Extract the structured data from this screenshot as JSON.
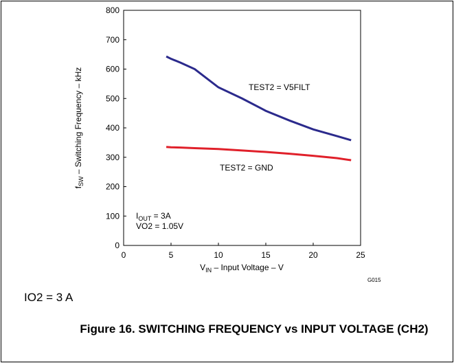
{
  "chart_data": {
    "type": "line",
    "ylabel": {
      "main": "f",
      "sub": "SW",
      "rest": " – Switching Frequency – kHz"
    },
    "xlabel": {
      "main": "V",
      "sub": "IN",
      "rest": " – Input Voltage – V"
    },
    "x": [
      4.5,
      5,
      6,
      7.5,
      10,
      12.5,
      15,
      17.5,
      20,
      22.5,
      24
    ],
    "series": [
      {
        "name": "TEST2 = V5FILT",
        "color": "#2b2a8c",
        "values": [
          643,
          635,
          622,
          600,
          538,
          500,
          458,
          425,
          395,
          372,
          358
        ]
      },
      {
        "name": "TEST2 = GND",
        "color": "#e0202a",
        "values": [
          335,
          334,
          333,
          331,
          328,
          323,
          318,
          312,
          305,
          297,
          290
        ]
      }
    ],
    "annotations": [
      {
        "main": "I",
        "sub": "OUT",
        "rest": " = 3A"
      },
      {
        "main": "VO2 = 1.05V"
      },
      {
        "main": "G015"
      }
    ],
    "xlim": [
      0,
      25
    ],
    "xticks": [
      0,
      5,
      10,
      15,
      20,
      25
    ],
    "ylim": [
      0,
      800
    ],
    "yticks": [
      0,
      100,
      200,
      300,
      400,
      500,
      600,
      700,
      800
    ],
    "grid": false
  },
  "condition": "IO2 = 3 A",
  "caption": "Figure 16. SWITCHING FREQUENCY vs INPUT VOLTAGE (CH2)"
}
